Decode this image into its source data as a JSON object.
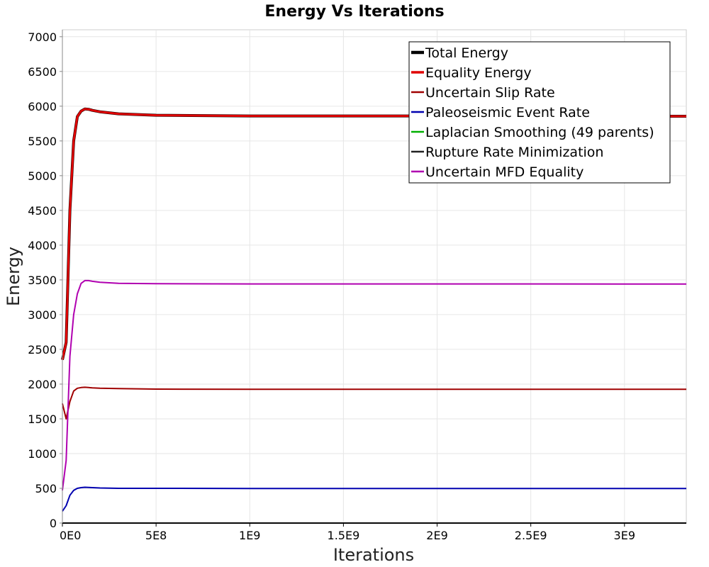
{
  "chart_data": {
    "type": "line",
    "title": "Energy Vs Iterations",
    "xlabel": "Iterations",
    "ylabel": "Energy",
    "xlim": [
      0,
      3330000000
    ],
    "ylim": [
      0,
      7100
    ],
    "grid": true,
    "legend_position": "top-right",
    "x_ticks": [
      {
        "value": 0,
        "label": "0E0"
      },
      {
        "value": 500000000,
        "label": "5E8"
      },
      {
        "value": 1000000000,
        "label": "1E9"
      },
      {
        "value": 1500000000,
        "label": "1.5E9"
      },
      {
        "value": 2000000000,
        "label": "2E9"
      },
      {
        "value": 2500000000,
        "label": "2.5E9"
      },
      {
        "value": 3000000000,
        "label": "3E9"
      }
    ],
    "y_ticks": [
      {
        "value": 0,
        "label": "0"
      },
      {
        "value": 500,
        "label": "500"
      },
      {
        "value": 1000,
        "label": "1000"
      },
      {
        "value": 1500,
        "label": "1500"
      },
      {
        "value": 2000,
        "label": "2000"
      },
      {
        "value": 2500,
        "label": "2500"
      },
      {
        "value": 3000,
        "label": "3000"
      },
      {
        "value": 3500,
        "label": "3500"
      },
      {
        "value": 4000,
        "label": "4000"
      },
      {
        "value": 4500,
        "label": "4500"
      },
      {
        "value": 5000,
        "label": "5000"
      },
      {
        "value": 5500,
        "label": "5500"
      },
      {
        "value": 6000,
        "label": "6000"
      },
      {
        "value": 6500,
        "label": "6500"
      },
      {
        "value": 7000,
        "label": "7000"
      }
    ],
    "x": [
      0,
      20000000,
      40000000,
      60000000,
      80000000,
      100000000,
      120000000,
      140000000,
      160000000,
      200000000,
      300000000,
      500000000,
      1000000000,
      1500000000,
      2000000000,
      2500000000,
      3000000000,
      3330000000
    ],
    "series": [
      {
        "name": "Total Energy",
        "color": "#000000",
        "width": 4,
        "values": [
          2350,
          2600,
          4500,
          5500,
          5850,
          5930,
          5960,
          5955,
          5940,
          5920,
          5890,
          5870,
          5860,
          5860,
          5860,
          5860,
          5855,
          5855
        ]
      },
      {
        "name": "Equality Energy",
        "color": "#e00000",
        "width": 3,
        "values": [
          2350,
          2600,
          4500,
          5500,
          5850,
          5930,
          5960,
          5955,
          5940,
          5920,
          5890,
          5870,
          5860,
          5860,
          5860,
          5860,
          5855,
          5855
        ]
      },
      {
        "name": "Uncertain Slip Rate",
        "color": "#a00000",
        "width": 2,
        "values": [
          1720,
          1500,
          1750,
          1900,
          1940,
          1950,
          1955,
          1950,
          1945,
          1940,
          1935,
          1928,
          1925,
          1925,
          1925,
          1925,
          1925,
          1925
        ]
      },
      {
        "name": "Paleoseismic Event Rate",
        "color": "#0000b0",
        "width": 2,
        "values": [
          170,
          250,
          400,
          470,
          500,
          510,
          515,
          512,
          510,
          505,
          500,
          500,
          498,
          498,
          498,
          498,
          498,
          498
        ]
      },
      {
        "name": "Laplacian Smoothing (49 parents)",
        "color": "#00b000",
        "width": 2,
        "values": [
          0,
          0,
          0,
          0,
          0,
          0,
          0,
          0,
          0,
          0,
          0,
          0,
          0,
          0,
          0,
          0,
          0,
          0
        ]
      },
      {
        "name": "Rupture Rate Minimization",
        "color": "#222222",
        "width": 2,
        "values": [
          0,
          0,
          0,
          0,
          0,
          0,
          0,
          0,
          0,
          0,
          0,
          0,
          0,
          0,
          0,
          0,
          0,
          0
        ]
      },
      {
        "name": "Uncertain MFD Equality",
        "color": "#b000b0",
        "width": 2,
        "values": [
          470,
          900,
          2400,
          3000,
          3300,
          3450,
          3490,
          3490,
          3480,
          3465,
          3450,
          3445,
          3442,
          3442,
          3442,
          3442,
          3440,
          3440
        ]
      }
    ]
  }
}
